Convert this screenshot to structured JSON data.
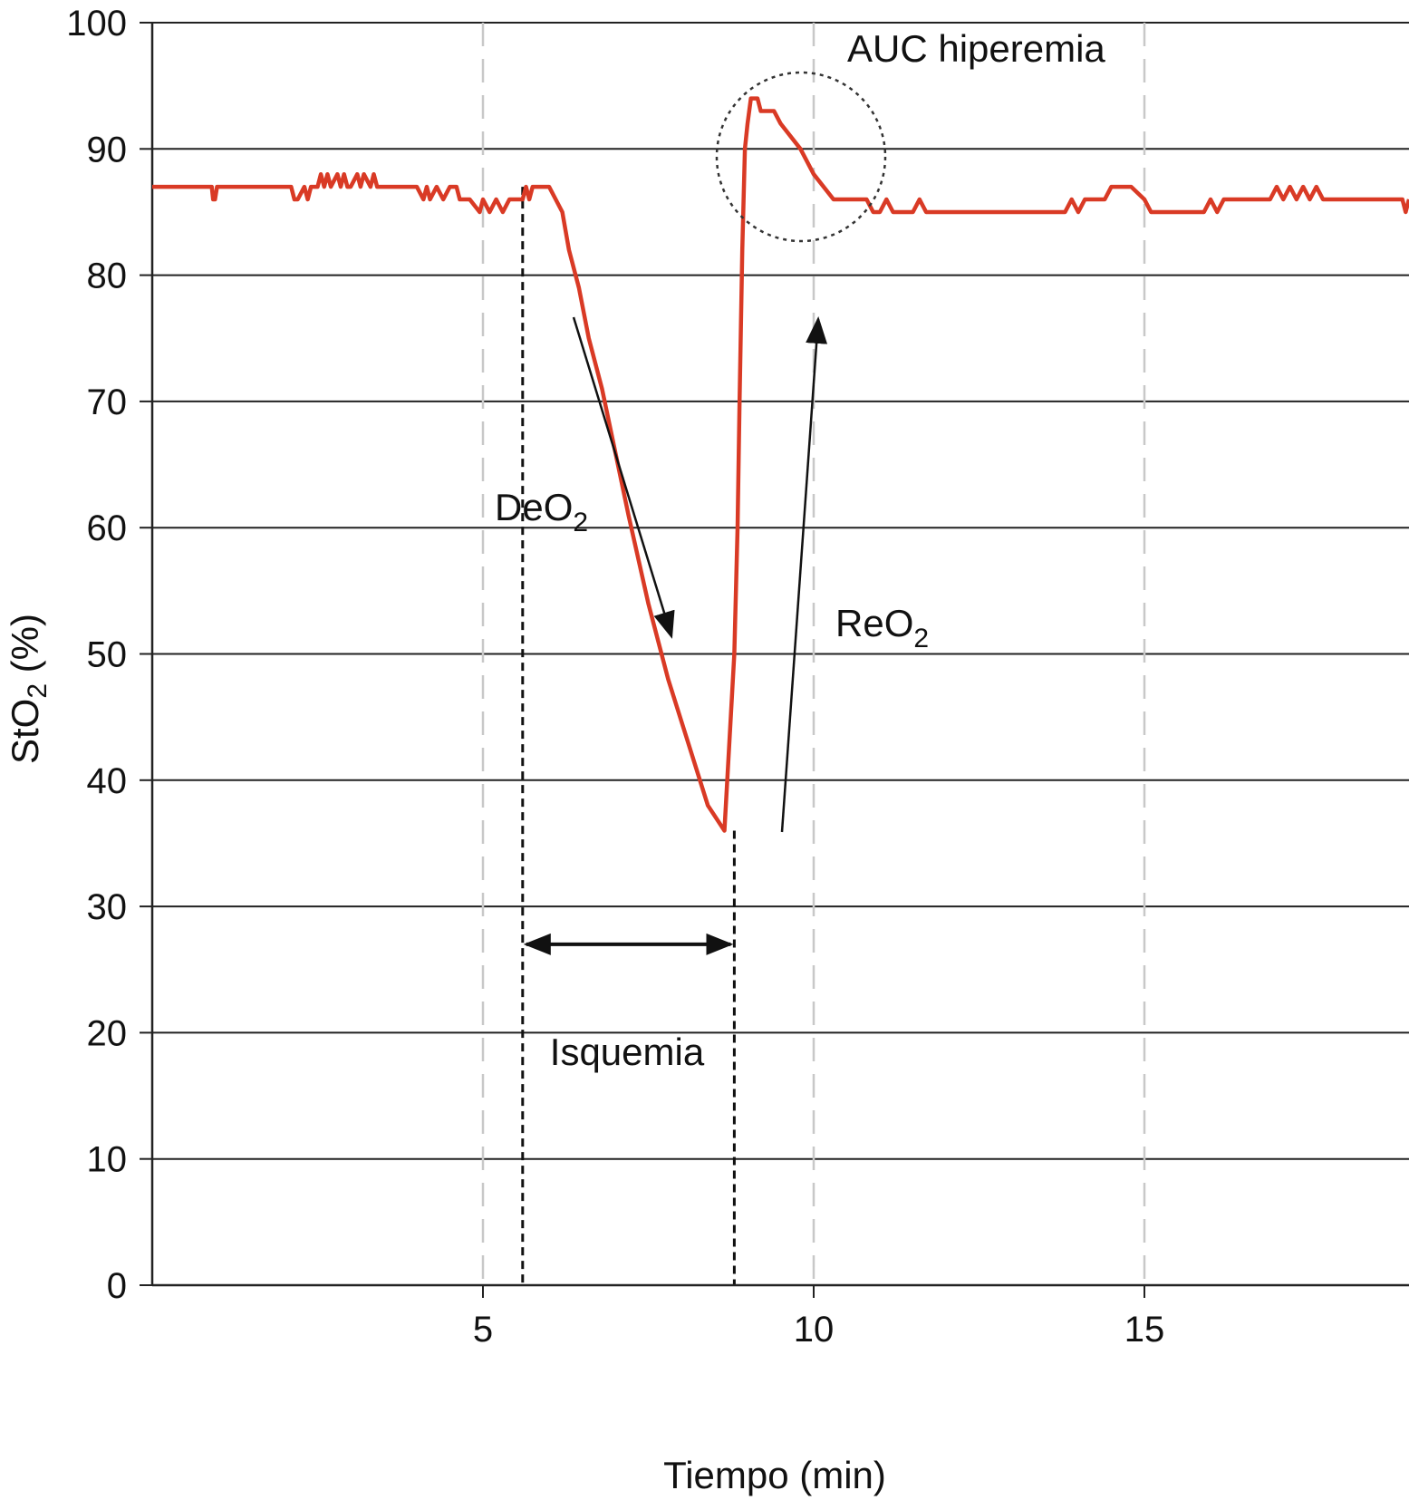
{
  "chart_data": {
    "type": "line",
    "xlabel": "Tiempo (min)",
    "ylabel": {
      "main": "StO",
      "sub": "2",
      "tail": " (%)"
    },
    "xlim": [
      0,
      19
    ],
    "ylim": [
      0,
      100
    ],
    "x_ticks": [
      5,
      10,
      15
    ],
    "x_tick_labels": [
      "5",
      "10",
      "15"
    ],
    "y_ticks": [
      0,
      10,
      20,
      30,
      40,
      50,
      60,
      70,
      80,
      90,
      100
    ],
    "y_tick_labels": [
      "0",
      "10",
      "20",
      "30",
      "40",
      "50",
      "60",
      "70",
      "80",
      "90",
      "100"
    ],
    "grid": {
      "horizontal": "solid",
      "vertical": "dashed"
    },
    "colors": {
      "series": "#d93a25",
      "grid": "#222222",
      "vgrid": "#c8c8c8",
      "annotation": "#111111"
    },
    "series": [
      {
        "x": [
          0,
          0.9,
          0.92,
          0.95,
          0.98,
          1.0,
          2.1,
          2.15,
          2.2,
          2.3,
          2.35,
          2.4,
          2.5,
          2.55,
          2.6,
          2.65,
          2.7,
          2.8,
          2.85,
          2.9,
          2.95,
          3.0,
          3.1,
          3.15,
          3.2,
          3.3,
          3.35,
          3.4,
          3.5,
          4.0,
          4.1,
          4.15,
          4.2,
          4.3,
          4.4,
          4.5,
          4.6,
          4.65,
          4.7,
          4.8,
          4.95,
          5.0,
          5.1,
          5.2,
          5.3,
          5.4,
          5.5,
          5.6,
          5.65,
          5.7,
          5.75,
          5.8,
          5.9,
          6.0,
          6.1,
          6.2,
          6.3,
          6.45,
          6.6,
          6.8,
          7.0,
          7.2,
          7.5,
          7.8,
          8.1,
          8.4,
          8.65,
          8.8,
          8.85,
          8.88,
          8.92,
          8.96,
          9.0,
          9.05,
          9.1,
          9.15,
          9.2,
          9.3,
          9.4,
          9.5,
          9.8,
          10.0,
          10.3,
          10.6,
          10.8,
          10.9,
          11.0,
          11.1,
          11.2,
          11.5,
          11.6,
          11.7,
          11.8,
          12.0,
          12.5,
          13.0,
          13.5,
          13.8,
          13.9,
          14.0,
          14.1,
          14.3,
          14.4,
          14.5,
          14.8,
          15.0,
          15.1,
          15.2,
          15.5,
          15.9,
          16.0,
          16.1,
          16.2,
          16.5,
          16.8,
          16.9,
          17.0,
          17.1,
          17.2,
          17.3,
          17.4,
          17.5,
          17.6,
          17.7,
          17.8,
          18.0,
          18.5,
          18.9,
          18.95,
          19.0
        ],
        "y": [
          87,
          87,
          86,
          86,
          87,
          87,
          87,
          86,
          86,
          87,
          86,
          87,
          87,
          88,
          87,
          88,
          87,
          88,
          87,
          88,
          87,
          87,
          88,
          87,
          88,
          87,
          88,
          87,
          87,
          87,
          86,
          87,
          86,
          87,
          86,
          87,
          87,
          86,
          86,
          86,
          85,
          86,
          85,
          86,
          85,
          86,
          86,
          86,
          87,
          86,
          87,
          87,
          87,
          87,
          86,
          85,
          82,
          79,
          75,
          71,
          66,
          61,
          54,
          48,
          43,
          38,
          36,
          50,
          60,
          70,
          82,
          90,
          92,
          94,
          94,
          94,
          93,
          93,
          93,
          92,
          90,
          88,
          86,
          86,
          86,
          85,
          85,
          86,
          85,
          85,
          86,
          85,
          85,
          85,
          85,
          85,
          85,
          85,
          86,
          85,
          86,
          86,
          86,
          87,
          87,
          86,
          85,
          85,
          85,
          85,
          86,
          85,
          86,
          86,
          86,
          86,
          87,
          86,
          87,
          86,
          87,
          86,
          87,
          86,
          86,
          86,
          86,
          86,
          85,
          86
        ]
      }
    ],
    "annotations": [
      {
        "id": "auc",
        "label": "AUC hiperemia"
      },
      {
        "id": "deo2",
        "label": {
          "main": "DeO",
          "sub": "2"
        }
      },
      {
        "id": "reo2",
        "label": {
          "main": "ReO",
          "sub": "2"
        }
      },
      {
        "id": "isquemia",
        "label": "Isquemia",
        "x_start": 5.6,
        "x_end": 8.8,
        "y": 27
      }
    ],
    "markers": {
      "ischemia_start_x": 5.6,
      "ischemia_end_x": 8.8
    }
  }
}
